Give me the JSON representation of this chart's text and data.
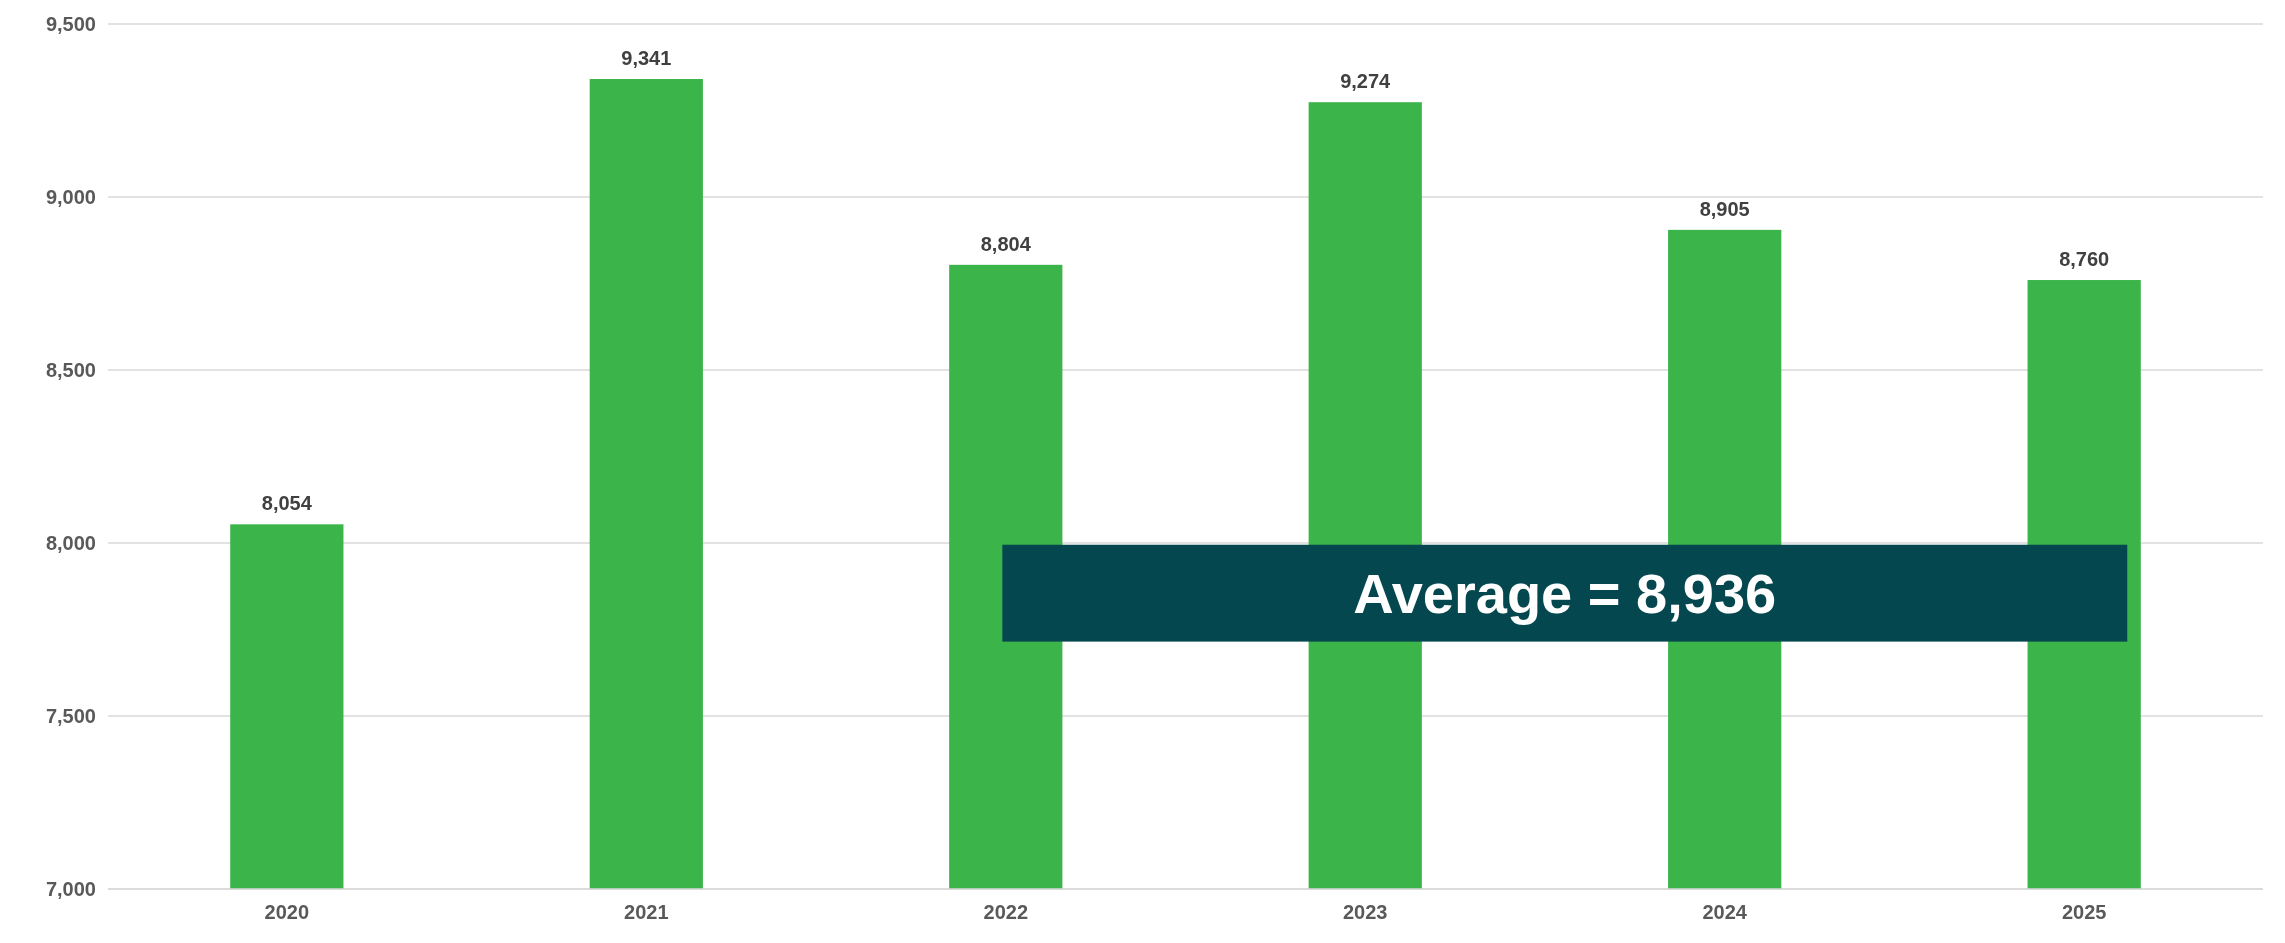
{
  "chart_data": {
    "type": "bar",
    "categories": [
      "2020",
      "2021",
      "2022",
      "2023",
      "2024",
      "2025"
    ],
    "values": [
      8054,
      9341,
      8804,
      9274,
      8905,
      8760
    ],
    "color": "#3bb44a",
    "ylim": [
      7000,
      9500
    ],
    "yticks": [
      {
        "value": 7000,
        "label": "7,000"
      },
      {
        "value": 7500,
        "label": "7,500"
      },
      {
        "value": 8000,
        "label": "8,000"
      },
      {
        "value": 8500,
        "label": "8,500"
      },
      {
        "value": 9000,
        "label": "9,000"
      },
      {
        "value": 9500,
        "label": "9,500"
      }
    ],
    "grid": "y",
    "value_labels": [
      "8,054",
      "9,341",
      "8,804",
      "9,274",
      "8,905",
      "8,760"
    ],
    "annotations": [
      "Average = 8,936"
    ]
  }
}
